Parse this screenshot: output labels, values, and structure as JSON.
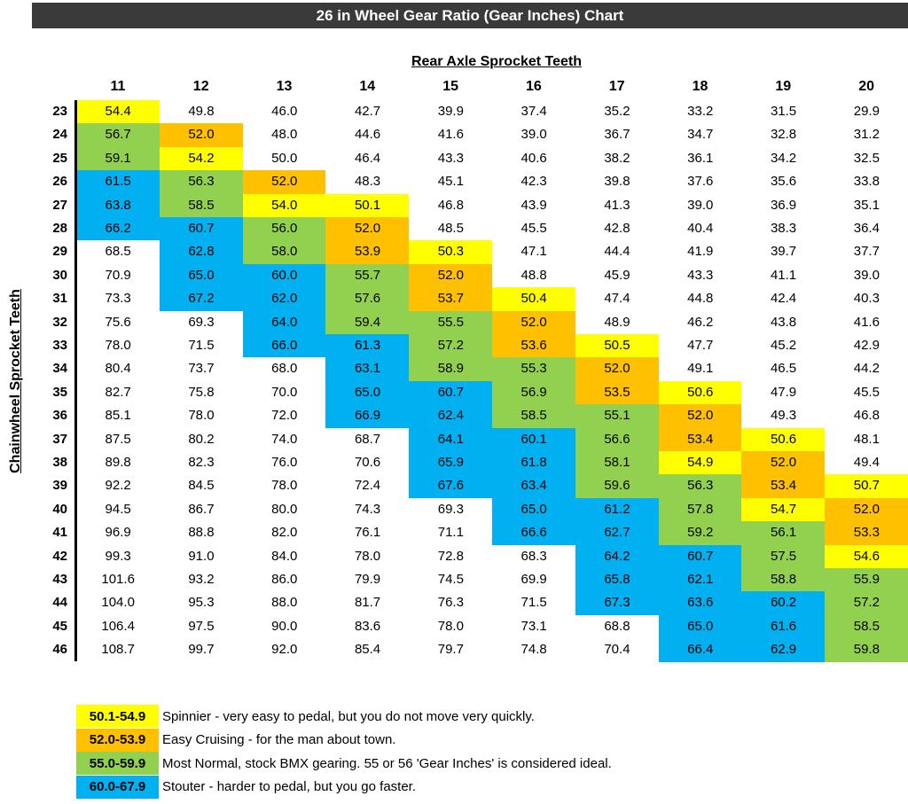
{
  "title": "26 in Wheel Gear Ratio (Gear Inches) Chart",
  "colors": {
    "yellow": "#ffff00",
    "orange": "#ffc000",
    "green": "#92d050",
    "blue": "#00b0f0",
    "white": "#ffffff"
  },
  "chart_data": {
    "type": "table",
    "title": "26 in Wheel Gear Ratio (Gear Inches) Chart",
    "xlabel": "Rear Axle Sprocket Teeth",
    "ylabel": "Chainwheel Sprocket Teeth",
    "columns": [
      "11",
      "12",
      "13",
      "14",
      "15",
      "16",
      "17",
      "18",
      "19",
      "20"
    ],
    "rows": [
      "23",
      "24",
      "25",
      "26",
      "27",
      "28",
      "29",
      "30",
      "31",
      "32",
      "33",
      "34",
      "35",
      "36",
      "37",
      "38",
      "39",
      "40",
      "41",
      "42",
      "43",
      "44",
      "45",
      "46"
    ],
    "values": [
      [
        "54.4",
        "49.8",
        "46.0",
        "42.7",
        "39.9",
        "37.4",
        "35.2",
        "33.2",
        "31.5",
        "29.9"
      ],
      [
        "56.7",
        "52.0",
        "48.0",
        "44.6",
        "41.6",
        "39.0",
        "36.7",
        "34.7",
        "32.8",
        "31.2"
      ],
      [
        "59.1",
        "54.2",
        "50.0",
        "46.4",
        "43.3",
        "40.6",
        "38.2",
        "36.1",
        "34.2",
        "32.5"
      ],
      [
        "61.5",
        "56.3",
        "52.0",
        "48.3",
        "45.1",
        "42.3",
        "39.8",
        "37.6",
        "35.6",
        "33.8"
      ],
      [
        "63.8",
        "58.5",
        "54.0",
        "50.1",
        "46.8",
        "43.9",
        "41.3",
        "39.0",
        "36.9",
        "35.1"
      ],
      [
        "66.2",
        "60.7",
        "56.0",
        "52.0",
        "48.5",
        "45.5",
        "42.8",
        "40.4",
        "38.3",
        "36.4"
      ],
      [
        "68.5",
        "62.8",
        "58.0",
        "53.9",
        "50.3",
        "47.1",
        "44.4",
        "41.9",
        "39.7",
        "37.7"
      ],
      [
        "70.9",
        "65.0",
        "60.0",
        "55.7",
        "52.0",
        "48.8",
        "45.9",
        "43.3",
        "41.1",
        "39.0"
      ],
      [
        "73.3",
        "67.2",
        "62.0",
        "57.6",
        "53.7",
        "50.4",
        "47.4",
        "44.8",
        "42.4",
        "40.3"
      ],
      [
        "75.6",
        "69.3",
        "64.0",
        "59.4",
        "55.5",
        "52.0",
        "48.9",
        "46.2",
        "43.8",
        "41.6"
      ],
      [
        "78.0",
        "71.5",
        "66.0",
        "61.3",
        "57.2",
        "53.6",
        "50.5",
        "47.7",
        "45.2",
        "42.9"
      ],
      [
        "80.4",
        "73.7",
        "68.0",
        "63.1",
        "58.9",
        "55.3",
        "52.0",
        "49.1",
        "46.5",
        "44.2"
      ],
      [
        "82.7",
        "75.8",
        "70.0",
        "65.0",
        "60.7",
        "56.9",
        "53.5",
        "50.6",
        "47.9",
        "45.5"
      ],
      [
        "85.1",
        "78.0",
        "72.0",
        "66.9",
        "62.4",
        "58.5",
        "55.1",
        "52.0",
        "49.3",
        "46.8"
      ],
      [
        "87.5",
        "80.2",
        "74.0",
        "68.7",
        "64.1",
        "60.1",
        "56.6",
        "53.4",
        "50.6",
        "48.1"
      ],
      [
        "89.8",
        "82.3",
        "76.0",
        "70.6",
        "65.9",
        "61.8",
        "58.1",
        "54.9",
        "52.0",
        "49.4"
      ],
      [
        "92.2",
        "84.5",
        "78.0",
        "72.4",
        "67.6",
        "63.4",
        "59.6",
        "56.3",
        "53.4",
        "50.7"
      ],
      [
        "94.5",
        "86.7",
        "80.0",
        "74.3",
        "69.3",
        "65.0",
        "61.2",
        "57.8",
        "54.7",
        "52.0"
      ],
      [
        "96.9",
        "88.8",
        "82.0",
        "76.1",
        "71.1",
        "66.6",
        "62.7",
        "59.2",
        "56.1",
        "53.3"
      ],
      [
        "99.3",
        "91.0",
        "84.0",
        "78.0",
        "72.8",
        "68.3",
        "64.2",
        "60.7",
        "57.5",
        "54.6"
      ],
      [
        "101.6",
        "93.2",
        "86.0",
        "79.9",
        "74.5",
        "69.9",
        "65.8",
        "62.1",
        "58.8",
        "55.9"
      ],
      [
        "104.0",
        "95.3",
        "88.0",
        "81.7",
        "76.3",
        "71.5",
        "67.3",
        "63.6",
        "60.2",
        "57.2"
      ],
      [
        "106.4",
        "97.5",
        "90.0",
        "83.6",
        "78.0",
        "73.1",
        "68.8",
        "65.0",
        "61.6",
        "58.5"
      ],
      [
        "108.7",
        "99.7",
        "92.0",
        "85.4",
        "79.7",
        "74.8",
        "70.4",
        "66.4",
        "62.9",
        "59.8"
      ]
    ],
    "cell_colors": [
      [
        "yellow",
        "white",
        "white",
        "white",
        "white",
        "white",
        "white",
        "white",
        "white",
        "white"
      ],
      [
        "green",
        "orange",
        "white",
        "white",
        "white",
        "white",
        "white",
        "white",
        "white",
        "white"
      ],
      [
        "green",
        "yellow",
        "white",
        "white",
        "white",
        "white",
        "white",
        "white",
        "white",
        "white"
      ],
      [
        "blue",
        "green",
        "orange",
        "white",
        "white",
        "white",
        "white",
        "white",
        "white",
        "white"
      ],
      [
        "blue",
        "green",
        "yellow",
        "yellow",
        "white",
        "white",
        "white",
        "white",
        "white",
        "white"
      ],
      [
        "blue",
        "blue",
        "green",
        "orange",
        "white",
        "white",
        "white",
        "white",
        "white",
        "white"
      ],
      [
        "white",
        "blue",
        "green",
        "orange",
        "yellow",
        "white",
        "white",
        "white",
        "white",
        "white"
      ],
      [
        "white",
        "blue",
        "blue",
        "green",
        "orange",
        "white",
        "white",
        "white",
        "white",
        "white"
      ],
      [
        "white",
        "blue",
        "blue",
        "green",
        "orange",
        "yellow",
        "white",
        "white",
        "white",
        "white"
      ],
      [
        "white",
        "white",
        "blue",
        "green",
        "green",
        "orange",
        "white",
        "white",
        "white",
        "white"
      ],
      [
        "white",
        "white",
        "blue",
        "blue",
        "green",
        "orange",
        "yellow",
        "white",
        "white",
        "white"
      ],
      [
        "white",
        "white",
        "white",
        "blue",
        "green",
        "green",
        "orange",
        "white",
        "white",
        "white"
      ],
      [
        "white",
        "white",
        "white",
        "blue",
        "blue",
        "green",
        "orange",
        "yellow",
        "white",
        "white"
      ],
      [
        "white",
        "white",
        "white",
        "blue",
        "blue",
        "green",
        "green",
        "orange",
        "white",
        "white"
      ],
      [
        "white",
        "white",
        "white",
        "white",
        "blue",
        "blue",
        "green",
        "orange",
        "yellow",
        "white"
      ],
      [
        "white",
        "white",
        "white",
        "white",
        "blue",
        "blue",
        "green",
        "yellow",
        "orange",
        "white"
      ],
      [
        "white",
        "white",
        "white",
        "white",
        "blue",
        "blue",
        "green",
        "green",
        "orange",
        "yellow"
      ],
      [
        "white",
        "white",
        "white",
        "white",
        "white",
        "blue",
        "blue",
        "green",
        "yellow",
        "orange"
      ],
      [
        "white",
        "white",
        "white",
        "white",
        "white",
        "blue",
        "blue",
        "green",
        "green",
        "orange"
      ],
      [
        "white",
        "white",
        "white",
        "white",
        "white",
        "white",
        "blue",
        "blue",
        "green",
        "yellow"
      ],
      [
        "white",
        "white",
        "white",
        "white",
        "white",
        "white",
        "blue",
        "blue",
        "green",
        "green"
      ],
      [
        "white",
        "white",
        "white",
        "white",
        "white",
        "white",
        "blue",
        "blue",
        "blue",
        "green"
      ],
      [
        "white",
        "white",
        "white",
        "white",
        "white",
        "white",
        "white",
        "blue",
        "blue",
        "green"
      ],
      [
        "white",
        "white",
        "white",
        "white",
        "white",
        "white",
        "white",
        "blue",
        "blue",
        "green"
      ]
    ]
  },
  "legend": [
    {
      "range": "50.1-54.9",
      "color": "yellow",
      "text": "Spinnier - very easy to pedal, but you do not move very quickly."
    },
    {
      "range": "52.0-53.9",
      "color": "orange",
      "text": "Easy Cruising - for the man about town."
    },
    {
      "range": "55.0-59.9",
      "color": "green",
      "text": "Most Normal, stock BMX gearing.  55 or 56 'Gear Inches' is considered ideal."
    },
    {
      "range": "60.0-67.9",
      "color": "blue",
      "text": "Stouter - harder to pedal, but you go faster."
    }
  ]
}
